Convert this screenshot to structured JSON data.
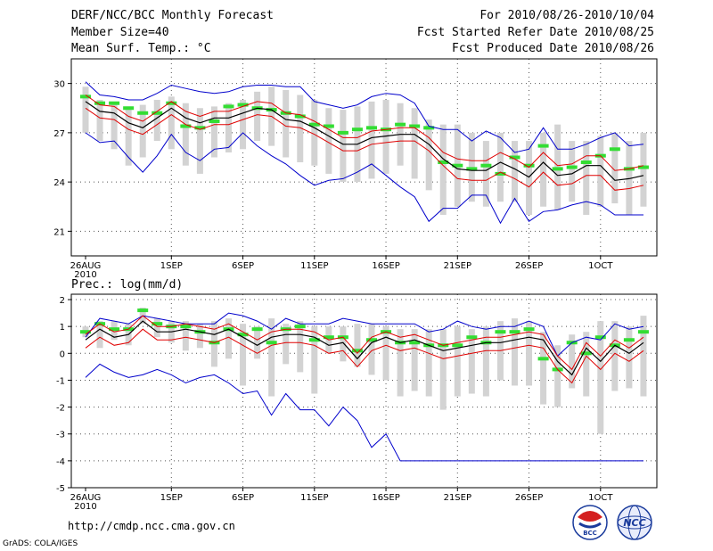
{
  "header": {
    "title": "DERF/NCC/BCC Monthly Forecast",
    "member_size": "Member Size=40",
    "variable_top": "Mean Surf. Temp.: °C",
    "period": "For 2010/08/26-2010/10/04",
    "fcst_started": "Fcst Started Refer Date 2010/08/25",
    "fcst_produced": "Fcst Produced Date 2010/08/26"
  },
  "footer": {
    "url": "http://cmdp.ncc.cma.gov.cn",
    "credit": "GrADS: COLA/IGES",
    "logo_left_text": "BCC",
    "logo_right_text": "NCC"
  },
  "colors": {
    "ensemble_bar": "#d3d3d3",
    "median_mark": "#33dd33",
    "mean_line": "#000000",
    "inner_band": "#e00000",
    "outer_band": "#0000cc",
    "grid": "#555555"
  },
  "chart_data": [
    {
      "type": "line",
      "title": "Mean Surf. Temp.: °C",
      "x_tick_labels": [
        "26AUG",
        "1SEP",
        "6SEP",
        "11SEP",
        "16SEP",
        "21SEP",
        "26SEP",
        "1OCT"
      ],
      "x_tick_year": "2010",
      "x_tick_days": [
        0,
        6,
        11,
        16,
        21,
        26,
        31,
        36
      ],
      "ylim": [
        19.5,
        31.5
      ],
      "yticks": [
        21,
        24,
        27,
        30
      ],
      "days": 40,
      "series": [
        {
          "name": "ensemble max",
          "values": [
            29.8,
            29.0,
            28.8,
            28.6,
            28.7,
            29.0,
            29.2,
            28.8,
            28.5,
            28.6,
            28.8,
            29.0,
            29.5,
            29.8,
            29.6,
            29.3,
            29.0,
            28.5,
            28.4,
            28.6,
            28.9,
            29.0,
            28.8,
            28.5,
            27.8,
            27.5,
            27.5,
            27.0,
            26.5,
            27.0,
            26.5,
            26.5,
            27.0,
            27.5,
            26.5,
            26.5,
            26.8,
            27.0,
            26.5,
            27.0
          ]
        },
        {
          "name": "ensemble min",
          "values": [
            27.0,
            26.5,
            26.0,
            25.0,
            25.5,
            26.5,
            26.0,
            25.0,
            24.5,
            25.5,
            25.8,
            26.0,
            26.5,
            26.2,
            25.5,
            25.2,
            25.0,
            24.5,
            24.0,
            24.0,
            24.2,
            24.5,
            25.0,
            24.2,
            23.5,
            22.0,
            22.5,
            22.8,
            22.5,
            22.8,
            22.8,
            22.0,
            22.5,
            22.3,
            22.8,
            22.0,
            22.5,
            22.7,
            22.0,
            22.5
          ]
        },
        {
          "name": "ensemble median",
          "values": [
            29.2,
            28.8,
            28.8,
            28.5,
            28.2,
            28.2,
            28.8,
            27.4,
            27.3,
            27.7,
            28.6,
            28.7,
            28.5,
            28.4,
            28.2,
            28.0,
            27.5,
            27.4,
            27.0,
            27.2,
            27.3,
            27.2,
            27.5,
            27.4,
            27.3,
            25.2,
            25.0,
            24.8,
            25.0,
            24.5,
            25.5,
            25.0,
            26.2,
            24.8,
            24.9,
            25.2,
            25.6,
            26.0,
            24.8,
            24.9
          ]
        },
        {
          "name": "ensemble mean",
          "values": [
            28.9,
            28.3,
            28.2,
            27.6,
            27.3,
            27.9,
            28.5,
            27.9,
            27.6,
            27.9,
            27.9,
            28.2,
            28.5,
            28.4,
            27.8,
            27.7,
            27.3,
            26.8,
            26.3,
            26.3,
            26.7,
            26.8,
            26.9,
            26.9,
            26.3,
            25.4,
            24.8,
            24.7,
            24.7,
            25.2,
            24.8,
            24.3,
            25.2,
            24.4,
            24.5,
            25.0,
            25.0,
            24.1,
            24.2,
            24.4
          ]
        },
        {
          "name": "mean + 1 sd",
          "values": [
            29.3,
            28.7,
            28.6,
            28.0,
            27.7,
            28.3,
            28.9,
            28.3,
            28.0,
            28.3,
            28.3,
            28.6,
            28.9,
            28.8,
            28.2,
            28.1,
            27.7,
            27.2,
            26.7,
            26.7,
            27.1,
            27.2,
            27.3,
            27.3,
            26.7,
            25.8,
            25.4,
            25.3,
            25.3,
            25.8,
            25.4,
            24.9,
            25.8,
            25.0,
            25.1,
            25.6,
            25.6,
            24.7,
            24.8,
            25.0
          ]
        },
        {
          "name": "mean - 1 sd",
          "values": [
            28.5,
            27.9,
            27.8,
            27.2,
            26.9,
            27.5,
            28.1,
            27.5,
            27.2,
            27.5,
            27.5,
            27.8,
            28.1,
            28.0,
            27.4,
            27.3,
            26.9,
            26.4,
            25.9,
            25.9,
            26.3,
            26.4,
            26.5,
            26.5,
            25.9,
            25.0,
            24.2,
            24.1,
            24.1,
            24.6,
            24.2,
            23.7,
            24.6,
            23.8,
            23.9,
            24.4,
            24.4,
            23.5,
            23.6,
            23.8
          ]
        },
        {
          "name": "upper envelope",
          "values": [
            30.1,
            29.3,
            29.2,
            29.0,
            29.0,
            29.4,
            29.9,
            29.7,
            29.5,
            29.4,
            29.5,
            29.8,
            29.9,
            29.9,
            29.8,
            29.8,
            28.9,
            28.7,
            28.5,
            28.7,
            29.2,
            29.4,
            29.3,
            28.8,
            27.4,
            27.2,
            27.2,
            26.5,
            27.1,
            26.7,
            25.8,
            26.0,
            27.3,
            26.0,
            26.0,
            26.3,
            26.7,
            27.0,
            26.2,
            26.3
          ]
        },
        {
          "name": "lower envelope",
          "values": [
            27.0,
            26.4,
            26.5,
            25.5,
            24.6,
            25.6,
            26.9,
            25.8,
            25.3,
            26.0,
            26.1,
            27.0,
            26.2,
            25.6,
            25.1,
            24.4,
            23.8,
            24.1,
            24.2,
            24.6,
            25.1,
            24.4,
            23.7,
            23.1,
            21.6,
            22.4,
            22.4,
            23.2,
            23.2,
            21.5,
            23.0,
            21.6,
            22.2,
            22.3,
            22.6,
            22.8,
            22.6,
            22.0,
            22.0,
            22.0
          ]
        }
      ]
    },
    {
      "type": "line",
      "title": "Prec.: log(mm/d)",
      "x_tick_labels": [
        "26AUG",
        "1SEP",
        "6SEP",
        "11SEP",
        "16SEP",
        "21SEP",
        "26SEP",
        "1OCT"
      ],
      "x_tick_year": "2010",
      "x_tick_days": [
        0,
        6,
        11,
        16,
        21,
        26,
        31,
        36
      ],
      "ylim": [
        -5,
        2.2
      ],
      "yticks": [
        -5,
        -4,
        -3,
        -2,
        -1,
        0,
        1,
        2
      ],
      "days": 40,
      "series": [
        {
          "name": "ensemble max",
          "values": [
            1.0,
            1.2,
            1.2,
            1.1,
            1.7,
            1.3,
            1.2,
            1.2,
            1.1,
            1.2,
            1.3,
            1.1,
            1.0,
            1.3,
            1.1,
            1.2,
            1.0,
            1.0,
            1.0,
            1.1,
            1.1,
            1.0,
            0.9,
            0.9,
            0.9,
            0.9,
            1.0,
            0.9,
            1.0,
            1.2,
            1.3,
            1.2,
            0.8,
            0.3,
            0.7,
            0.8,
            1.2,
            1.2,
            1.0,
            1.4
          ]
        },
        {
          "name": "ensemble min",
          "values": [
            0.6,
            0.2,
            0.5,
            0.3,
            1.1,
            0.6,
            0.4,
            0.1,
            0.2,
            -0.5,
            -0.2,
            -1.2,
            -0.2,
            -1.6,
            -0.4,
            -0.7,
            -1.5,
            0.0,
            -0.3,
            -0.5,
            -0.8,
            -1.0,
            -1.6,
            -1.4,
            -1.6,
            -2.1,
            -1.6,
            -1.5,
            -1.6,
            -1.0,
            -1.2,
            -1.2,
            -1.9,
            -2.0,
            -1.3,
            -1.6,
            -3.0,
            -1.4,
            -1.3,
            -1.6
          ]
        },
        {
          "name": "ensemble median",
          "values": [
            0.8,
            1.1,
            0.9,
            0.9,
            1.6,
            1.1,
            1.0,
            1.0,
            0.8,
            0.4,
            0.9,
            0.7,
            0.9,
            0.4,
            0.9,
            1.0,
            0.5,
            0.6,
            0.6,
            0.1,
            0.5,
            0.8,
            0.4,
            0.4,
            0.3,
            0.3,
            0.3,
            0.6,
            0.4,
            0.8,
            0.8,
            0.9,
            -0.2,
            -0.6,
            0.4,
            0.0,
            0.6,
            0.3,
            0.5,
            0.8
          ]
        },
        {
          "name": "ensemble mean",
          "values": [
            0.5,
            0.9,
            0.6,
            0.7,
            1.2,
            0.8,
            0.8,
            0.9,
            0.8,
            0.7,
            0.9,
            0.6,
            0.3,
            0.6,
            0.7,
            0.7,
            0.6,
            0.3,
            0.4,
            -0.2,
            0.4,
            0.6,
            0.4,
            0.5,
            0.3,
            0.1,
            0.2,
            0.3,
            0.4,
            0.4,
            0.5,
            0.6,
            0.5,
            -0.3,
            -0.8,
            0.2,
            -0.3,
            0.3,
            0.0,
            0.4
          ]
        },
        {
          "name": "mean + 1 sd",
          "values": [
            0.7,
            1.1,
            0.8,
            0.9,
            1.4,
            1.0,
            1.0,
            1.1,
            1.0,
            0.9,
            1.1,
            0.8,
            0.5,
            0.8,
            0.9,
            0.9,
            0.8,
            0.5,
            0.6,
            0.0,
            0.6,
            0.8,
            0.6,
            0.7,
            0.5,
            0.3,
            0.4,
            0.5,
            0.6,
            0.6,
            0.7,
            0.8,
            0.7,
            -0.1,
            -0.6,
            0.4,
            -0.1,
            0.5,
            0.2,
            0.6
          ]
        },
        {
          "name": "mean - 1 sd",
          "values": [
            0.2,
            0.6,
            0.3,
            0.4,
            0.9,
            0.5,
            0.5,
            0.6,
            0.5,
            0.4,
            0.6,
            0.3,
            0.0,
            0.3,
            0.4,
            0.4,
            0.3,
            0.0,
            0.1,
            -0.5,
            0.1,
            0.3,
            0.1,
            0.2,
            0.0,
            -0.2,
            -0.1,
            0.0,
            0.1,
            0.1,
            0.2,
            0.3,
            0.2,
            -0.6,
            -1.1,
            -0.1,
            -0.6,
            0.0,
            -0.3,
            0.1
          ]
        },
        {
          "name": "upper envelope",
          "values": [
            0.6,
            1.3,
            1.2,
            1.1,
            1.4,
            1.3,
            1.2,
            1.1,
            1.1,
            1.1,
            1.5,
            1.4,
            1.2,
            0.9,
            1.3,
            1.1,
            1.1,
            1.1,
            1.3,
            1.2,
            1.1,
            1.1,
            1.1,
            1.1,
            0.8,
            0.9,
            1.2,
            1.0,
            0.9,
            1.0,
            1.0,
            1.2,
            1.0,
            -0.1,
            0.4,
            0.6,
            0.5,
            1.1,
            0.9,
            1.0
          ]
        },
        {
          "name": "lower envelope",
          "values": [
            -0.9,
            -0.4,
            -0.7,
            -0.9,
            -0.8,
            -0.6,
            -0.8,
            -1.1,
            -0.9,
            -0.8,
            -1.1,
            -1.5,
            -1.4,
            -2.3,
            -1.5,
            -2.1,
            -2.1,
            -2.7,
            -2.0,
            -2.5,
            -3.5,
            -3.0,
            -4.0,
            -4.0,
            -4.0,
            -4.0,
            -4.0,
            -4.0,
            -4.0,
            -4.0,
            -4.0,
            -4.0,
            -4.0,
            -4.0,
            -4.0,
            -4.0,
            -4.0,
            -4.0,
            -4.0,
            -4.0
          ]
        }
      ]
    }
  ]
}
